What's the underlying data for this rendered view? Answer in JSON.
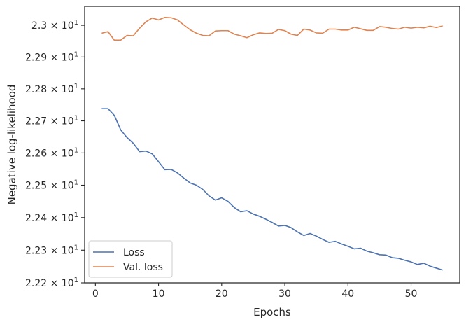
{
  "chart_data": {
    "type": "line",
    "title": "",
    "xlabel": "Epochs",
    "ylabel": "Negative log-likelihood",
    "yscale": "log",
    "xlim": [
      -1.7,
      57.7
    ],
    "ylim": [
      22.2,
      23.06
    ],
    "grid": false,
    "legend_position": "lower-left",
    "x_ticks": [
      {
        "value": 0,
        "label": "0"
      },
      {
        "value": 10,
        "label": "10"
      },
      {
        "value": 20,
        "label": "20"
      },
      {
        "value": 30,
        "label": "30"
      },
      {
        "value": 40,
        "label": "40"
      },
      {
        "value": 50,
        "label": "50"
      }
    ],
    "y_ticks": [
      {
        "value": 22.2,
        "mantissa": "2.22",
        "base": "10",
        "exp": "1"
      },
      {
        "value": 22.3,
        "mantissa": "2.23",
        "base": "10",
        "exp": "1"
      },
      {
        "value": 22.4,
        "mantissa": "2.24",
        "base": "10",
        "exp": "1"
      },
      {
        "value": 22.5,
        "mantissa": "2.25",
        "base": "10",
        "exp": "1"
      },
      {
        "value": 22.6,
        "mantissa": "2.26",
        "base": "10",
        "exp": "1"
      },
      {
        "value": 22.7,
        "mantissa": "2.27",
        "base": "10",
        "exp": "1"
      },
      {
        "value": 22.8,
        "mantissa": "2.28",
        "base": "10",
        "exp": "1"
      },
      {
        "value": 22.9,
        "mantissa": "2.29",
        "base": "10",
        "exp": "1"
      },
      {
        "value": 23.0,
        "mantissa": "2.3",
        "base": "10",
        "exp": "1"
      }
    ],
    "x": [
      1,
      2,
      3,
      4,
      5,
      6,
      7,
      8,
      9,
      10,
      11,
      12,
      13,
      14,
      15,
      16,
      17,
      18,
      19,
      20,
      21,
      22,
      23,
      24,
      25,
      26,
      27,
      28,
      29,
      30,
      31,
      32,
      33,
      34,
      35,
      36,
      37,
      38,
      39,
      40,
      41,
      42,
      43,
      44,
      45,
      46,
      47,
      48,
      49,
      50,
      51,
      52,
      53,
      54,
      55
    ],
    "series": [
      {
        "name": "Loss",
        "color": "#4c72b0",
        "values": [
          22.738,
          22.738,
          22.717,
          22.672,
          22.648,
          22.63,
          22.604,
          22.606,
          22.597,
          22.573,
          22.548,
          22.549,
          22.538,
          22.522,
          22.507,
          22.5,
          22.487,
          22.467,
          22.454,
          22.461,
          22.45,
          22.431,
          22.418,
          22.421,
          22.411,
          22.404,
          22.395,
          22.385,
          22.374,
          22.376,
          22.369,
          22.356,
          22.345,
          22.351,
          22.343,
          22.333,
          22.324,
          22.327,
          22.319,
          22.312,
          22.304,
          22.306,
          22.297,
          22.292,
          22.286,
          22.285,
          22.277,
          22.275,
          22.269,
          22.264,
          22.256,
          22.26,
          22.251,
          22.245,
          22.239
        ]
      },
      {
        "name": "Val. loss",
        "color": "#dd8452",
        "values": [
          22.975,
          22.98,
          22.953,
          22.953,
          22.968,
          22.967,
          22.991,
          23.011,
          23.023,
          23.017,
          23.025,
          23.024,
          23.017,
          23.001,
          22.986,
          22.975,
          22.968,
          22.967,
          22.982,
          22.983,
          22.983,
          22.972,
          22.967,
          22.961,
          22.97,
          22.976,
          22.974,
          22.975,
          22.987,
          22.983,
          22.972,
          22.968,
          22.988,
          22.985,
          22.976,
          22.975,
          22.988,
          22.988,
          22.985,
          22.985,
          22.994,
          22.989,
          22.984,
          22.984,
          22.996,
          22.994,
          22.99,
          22.988,
          22.994,
          22.991,
          22.994,
          22.992,
          22.997,
          22.993,
          22.998
        ]
      }
    ]
  }
}
